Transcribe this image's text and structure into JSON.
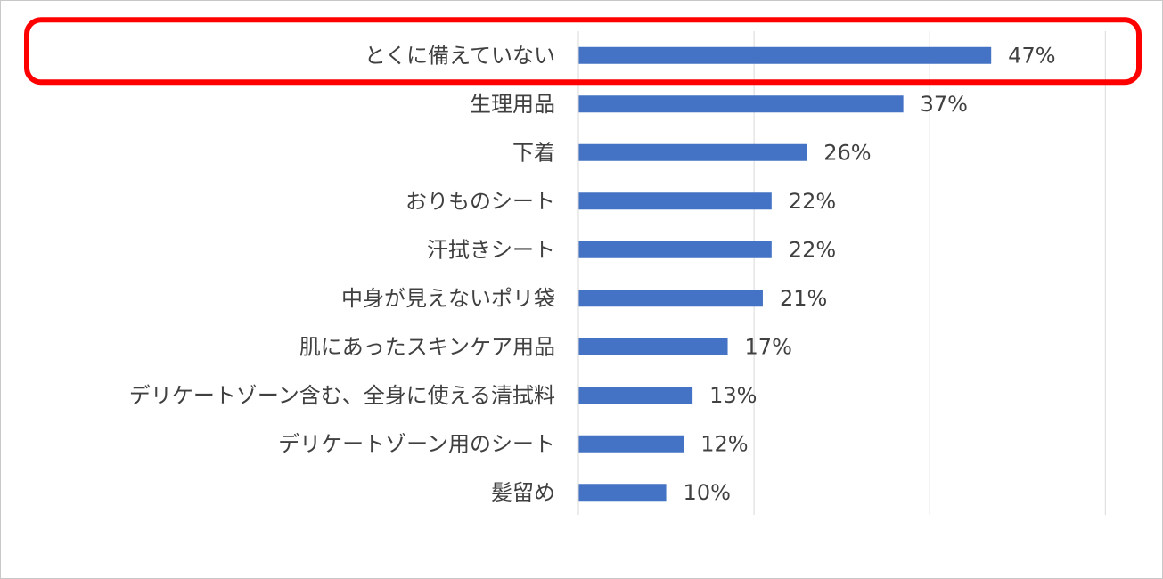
{
  "chart_data": {
    "type": "bar",
    "orientation": "horizontal",
    "categories": [
      "とくに備えていない",
      "生理用品",
      "下着",
      "おりものシート",
      "汗拭きシート",
      "中身が見えないポリ袋",
      "肌にあったスキンケア用品",
      "デリケートゾーン含む、全身に使える清拭料",
      "デリケートゾーン用のシート",
      "髪留め"
    ],
    "values": [
      47,
      37,
      26,
      22,
      22,
      21,
      17,
      13,
      12,
      10
    ],
    "value_labels": [
      "47%",
      "37%",
      "26%",
      "22%",
      "22%",
      "21%",
      "17%",
      "13%",
      "12%",
      "10%"
    ],
    "unit": "%",
    "xlim": [
      0,
      60
    ],
    "grid": true,
    "bar_color": "#4472c4",
    "highlight": {
      "category": "とくに備えていない",
      "color": "#ff0000"
    }
  }
}
